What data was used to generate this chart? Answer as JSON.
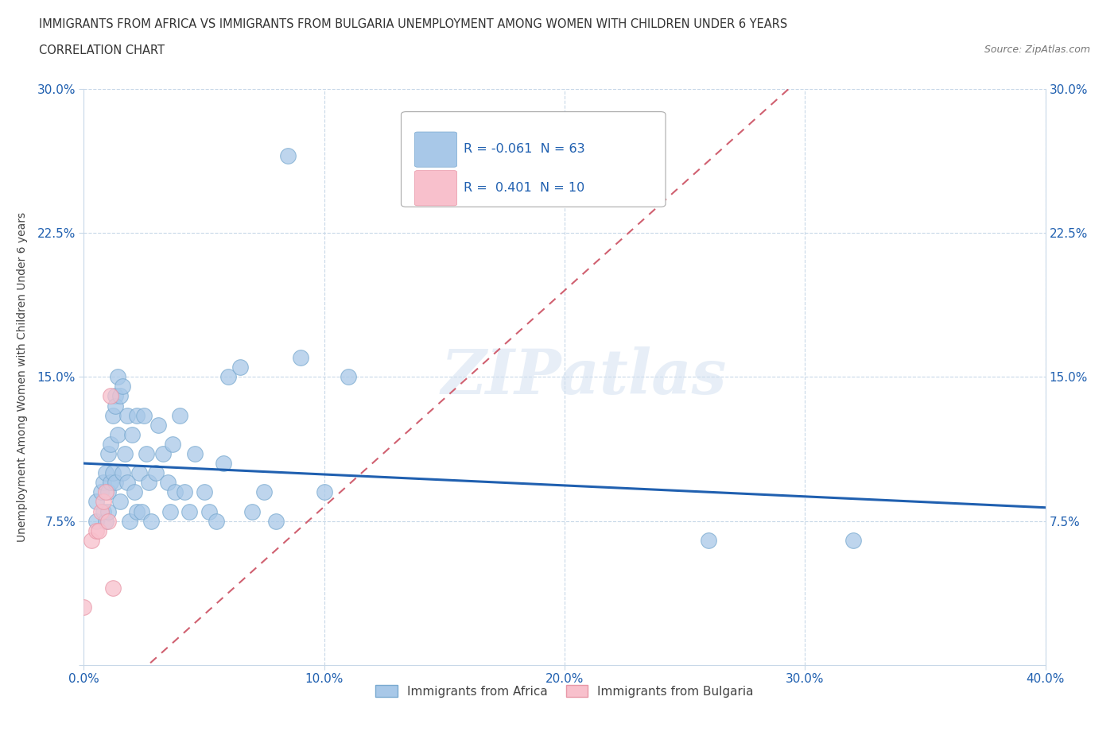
{
  "title_line1": "IMMIGRANTS FROM AFRICA VS IMMIGRANTS FROM BULGARIA UNEMPLOYMENT AMONG WOMEN WITH CHILDREN UNDER 6 YEARS",
  "title_line2": "CORRELATION CHART",
  "source": "Source: ZipAtlas.com",
  "ylabel": "Unemployment Among Women with Children Under 6 years",
  "xlim": [
    0.0,
    0.4
  ],
  "ylim": [
    0.0,
    0.3
  ],
  "xticks": [
    0.0,
    0.1,
    0.2,
    0.3,
    0.4
  ],
  "yticks": [
    0.0,
    0.075,
    0.15,
    0.225,
    0.3
  ],
  "africa_color": "#a8c8e8",
  "africa_edge": "#7aaad0",
  "bulgaria_color": "#f8c0cc",
  "bulgaria_edge": "#e898a8",
  "trend_africa_color": "#2060b0",
  "trend_bulgaria_color": "#e07080",
  "legend_R_africa": "-0.061",
  "legend_N_africa": "63",
  "legend_R_bulgaria": " 0.401",
  "legend_N_bulgaria": "10",
  "watermark": "ZIPatlas",
  "africa_x": [
    0.005,
    0.005,
    0.007,
    0.008,
    0.008,
    0.009,
    0.009,
    0.01,
    0.01,
    0.01,
    0.011,
    0.011,
    0.012,
    0.012,
    0.013,
    0.013,
    0.013,
    0.014,
    0.014,
    0.015,
    0.015,
    0.016,
    0.016,
    0.017,
    0.018,
    0.018,
    0.019,
    0.02,
    0.021,
    0.022,
    0.022,
    0.023,
    0.024,
    0.025,
    0.026,
    0.027,
    0.028,
    0.03,
    0.031,
    0.033,
    0.035,
    0.036,
    0.037,
    0.038,
    0.04,
    0.042,
    0.044,
    0.046,
    0.05,
    0.052,
    0.055,
    0.058,
    0.06,
    0.065,
    0.07,
    0.075,
    0.08,
    0.085,
    0.09,
    0.1,
    0.11,
    0.26,
    0.32
  ],
  "africa_y": [
    0.085,
    0.075,
    0.09,
    0.095,
    0.08,
    0.1,
    0.075,
    0.11,
    0.09,
    0.08,
    0.115,
    0.095,
    0.13,
    0.1,
    0.14,
    0.135,
    0.095,
    0.15,
    0.12,
    0.14,
    0.085,
    0.145,
    0.1,
    0.11,
    0.13,
    0.095,
    0.075,
    0.12,
    0.09,
    0.13,
    0.08,
    0.1,
    0.08,
    0.13,
    0.11,
    0.095,
    0.075,
    0.1,
    0.125,
    0.11,
    0.095,
    0.08,
    0.115,
    0.09,
    0.13,
    0.09,
    0.08,
    0.11,
    0.09,
    0.08,
    0.075,
    0.105,
    0.15,
    0.155,
    0.08,
    0.09,
    0.075,
    0.265,
    0.16,
    0.09,
    0.15,
    0.065,
    0.065
  ],
  "bulgaria_x": [
    0.0,
    0.003,
    0.005,
    0.006,
    0.007,
    0.008,
    0.009,
    0.01,
    0.011,
    0.012
  ],
  "bulgaria_y": [
    0.03,
    0.065,
    0.07,
    0.07,
    0.08,
    0.085,
    0.09,
    0.075,
    0.14,
    0.04
  ]
}
